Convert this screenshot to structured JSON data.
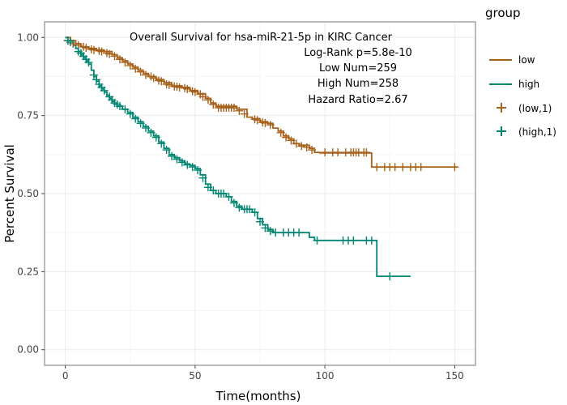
{
  "chart_data": {
    "type": "line",
    "xlabel": "Time(months)",
    "ylabel": "Percent Survival",
    "xlim": [
      -8,
      158
    ],
    "ylim": [
      -0.05,
      1.05
    ],
    "x_ticks": [
      0,
      50,
      100,
      150
    ],
    "y_ticks": [
      0.0,
      0.25,
      0.5,
      0.75,
      1.0
    ],
    "x_tick_labels": [
      "0",
      "50",
      "100",
      "150"
    ],
    "y_tick_labels": [
      "0.00",
      "0.25",
      "0.50",
      "0.75",
      "1.00"
    ],
    "grid": true,
    "annotations": [
      "Overall Survival for hsa-miR-21-5p in KIRC Cancer",
      "Log-Rank p=5.8e-10",
      "Low Num=259",
      "High Num=258",
      "Hazard Ratio=2.67"
    ],
    "legend": {
      "title": "group",
      "position": "right",
      "entries": [
        "low",
        "high",
        "(low,1)",
        "(high,1)"
      ]
    },
    "series": [
      {
        "name": "low",
        "color": "#a6611a",
        "steps": [
          [
            0,
            1.0
          ],
          [
            2,
            0.99
          ],
          [
            4,
            0.98
          ],
          [
            6,
            0.97
          ],
          [
            9,
            0.965
          ],
          [
            12,
            0.96
          ],
          [
            15,
            0.955
          ],
          [
            18,
            0.945
          ],
          [
            20,
            0.935
          ],
          [
            22,
            0.925
          ],
          [
            24,
            0.915
          ],
          [
            26,
            0.905
          ],
          [
            28,
            0.895
          ],
          [
            30,
            0.885
          ],
          [
            32,
            0.875
          ],
          [
            35,
            0.865
          ],
          [
            38,
            0.855
          ],
          [
            41,
            0.845
          ],
          [
            45,
            0.84
          ],
          [
            48,
            0.83
          ],
          [
            51,
            0.82
          ],
          [
            54,
            0.805
          ],
          [
            56,
            0.79
          ],
          [
            58,
            0.78
          ],
          [
            66,
            0.77
          ],
          [
            70,
            0.745
          ],
          [
            72,
            0.74
          ],
          [
            75,
            0.73
          ],
          [
            78,
            0.725
          ],
          [
            80,
            0.71
          ],
          [
            82,
            0.7
          ],
          [
            84,
            0.685
          ],
          [
            86,
            0.675
          ],
          [
            88,
            0.66
          ],
          [
            90,
            0.655
          ],
          [
            94,
            0.645
          ],
          [
            96,
            0.632
          ],
          [
            98,
            0.63
          ],
          [
            118,
            0.585
          ],
          [
            151,
            0.585
          ]
        ],
        "censors": [
          [
            1,
            0.99
          ],
          [
            3,
            0.98
          ],
          [
            5,
            0.975
          ],
          [
            7,
            0.97
          ],
          [
            8,
            0.967
          ],
          [
            10,
            0.962
          ],
          [
            11,
            0.96
          ],
          [
            13,
            0.957
          ],
          [
            14,
            0.955
          ],
          [
            16,
            0.95
          ],
          [
            17,
            0.947
          ],
          [
            19,
            0.94
          ],
          [
            21,
            0.93
          ],
          [
            23,
            0.92
          ],
          [
            25,
            0.91
          ],
          [
            27,
            0.9
          ],
          [
            29,
            0.89
          ],
          [
            31,
            0.88
          ],
          [
            33,
            0.875
          ],
          [
            34,
            0.87
          ],
          [
            36,
            0.862
          ],
          [
            37,
            0.86
          ],
          [
            39,
            0.85
          ],
          [
            40,
            0.848
          ],
          [
            42,
            0.843
          ],
          [
            43,
            0.842
          ],
          [
            44,
            0.84
          ],
          [
            46,
            0.838
          ],
          [
            47,
            0.835
          ],
          [
            49,
            0.828
          ],
          [
            50,
            0.825
          ],
          [
            52,
            0.818
          ],
          [
            53,
            0.81
          ],
          [
            55,
            0.8
          ],
          [
            57,
            0.785
          ],
          [
            59,
            0.775
          ],
          [
            60,
            0.775
          ],
          [
            61,
            0.775
          ],
          [
            62,
            0.775
          ],
          [
            63,
            0.775
          ],
          [
            64,
            0.775
          ],
          [
            65,
            0.775
          ],
          [
            67,
            0.765
          ],
          [
            69,
            0.755
          ],
          [
            73,
            0.738
          ],
          [
            74,
            0.735
          ],
          [
            76,
            0.728
          ],
          [
            77,
            0.726
          ],
          [
            79,
            0.72
          ],
          [
            83,
            0.695
          ],
          [
            85,
            0.68
          ],
          [
            87,
            0.67
          ],
          [
            89,
            0.66
          ],
          [
            91,
            0.652
          ],
          [
            93,
            0.648
          ],
          [
            95,
            0.64
          ],
          [
            100,
            0.632
          ],
          [
            103,
            0.632
          ],
          [
            105,
            0.632
          ],
          [
            108,
            0.632
          ],
          [
            110,
            0.632
          ],
          [
            111,
            0.632
          ],
          [
            112,
            0.632
          ],
          [
            113,
            0.632
          ],
          [
            115,
            0.632
          ],
          [
            116,
            0.632
          ],
          [
            120,
            0.585
          ],
          [
            123,
            0.585
          ],
          [
            125,
            0.585
          ],
          [
            127,
            0.585
          ],
          [
            130,
            0.585
          ],
          [
            133,
            0.585
          ],
          [
            135,
            0.585
          ],
          [
            137,
            0.585
          ],
          [
            150,
            0.585
          ]
        ]
      },
      {
        "name": "high",
        "color": "#018571",
        "steps": [
          [
            0,
            1.0
          ],
          [
            1,
            0.99
          ],
          [
            3,
            0.975
          ],
          [
            4,
            0.965
          ],
          [
            5,
            0.955
          ],
          [
            6,
            0.945
          ],
          [
            7,
            0.935
          ],
          [
            8,
            0.925
          ],
          [
            9,
            0.915
          ],
          [
            10,
            0.895
          ],
          [
            11,
            0.875
          ],
          [
            12,
            0.86
          ],
          [
            13,
            0.845
          ],
          [
            14,
            0.835
          ],
          [
            15,
            0.825
          ],
          [
            16,
            0.815
          ],
          [
            17,
            0.805
          ],
          [
            18,
            0.795
          ],
          [
            19,
            0.79
          ],
          [
            20,
            0.78
          ],
          [
            22,
            0.77
          ],
          [
            24,
            0.76
          ],
          [
            26,
            0.745
          ],
          [
            28,
            0.73
          ],
          [
            30,
            0.715
          ],
          [
            32,
            0.7
          ],
          [
            34,
            0.685
          ],
          [
            36,
            0.665
          ],
          [
            38,
            0.645
          ],
          [
            40,
            0.625
          ],
          [
            42,
            0.615
          ],
          [
            44,
            0.605
          ],
          [
            46,
            0.595
          ],
          [
            48,
            0.59
          ],
          [
            50,
            0.58
          ],
          [
            52,
            0.56
          ],
          [
            54,
            0.53
          ],
          [
            56,
            0.51
          ],
          [
            58,
            0.5
          ],
          [
            62,
            0.49
          ],
          [
            64,
            0.475
          ],
          [
            66,
            0.46
          ],
          [
            68,
            0.45
          ],
          [
            72,
            0.44
          ],
          [
            74,
            0.42
          ],
          [
            76,
            0.4
          ],
          [
            78,
            0.385
          ],
          [
            80,
            0.375
          ],
          [
            93,
            0.375
          ],
          [
            94,
            0.36
          ],
          [
            96,
            0.35
          ],
          [
            100,
            0.35
          ],
          [
            120,
            0.235
          ],
          [
            133,
            0.235
          ]
        ],
        "censors": [
          [
            1,
            0.99
          ],
          [
            2,
            0.985
          ],
          [
            5,
            0.955
          ],
          [
            6,
            0.95
          ],
          [
            7,
            0.94
          ],
          [
            8,
            0.93
          ],
          [
            9,
            0.92
          ],
          [
            11,
            0.88
          ],
          [
            12,
            0.865
          ],
          [
            13,
            0.85
          ],
          [
            14,
            0.84
          ],
          [
            15,
            0.83
          ],
          [
            17,
            0.81
          ],
          [
            18,
            0.8
          ],
          [
            19,
            0.79
          ],
          [
            20,
            0.785
          ],
          [
            21,
            0.78
          ],
          [
            23,
            0.77
          ],
          [
            25,
            0.755
          ],
          [
            27,
            0.74
          ],
          [
            29,
            0.725
          ],
          [
            31,
            0.71
          ],
          [
            33,
            0.695
          ],
          [
            35,
            0.68
          ],
          [
            37,
            0.66
          ],
          [
            39,
            0.64
          ],
          [
            41,
            0.62
          ],
          [
            43,
            0.61
          ],
          [
            45,
            0.6
          ],
          [
            47,
            0.592
          ],
          [
            49,
            0.585
          ],
          [
            51,
            0.575
          ],
          [
            53,
            0.55
          ],
          [
            55,
            0.52
          ],
          [
            57,
            0.51
          ],
          [
            59,
            0.5
          ],
          [
            60,
            0.5
          ],
          [
            61,
            0.5
          ],
          [
            63,
            0.49
          ],
          [
            65,
            0.47
          ],
          [
            67,
            0.455
          ],
          [
            69,
            0.45
          ],
          [
            70,
            0.45
          ],
          [
            71,
            0.45
          ],
          [
            73,
            0.44
          ],
          [
            75,
            0.41
          ],
          [
            77,
            0.39
          ],
          [
            79,
            0.38
          ],
          [
            81,
            0.375
          ],
          [
            84,
            0.375
          ],
          [
            86,
            0.375
          ],
          [
            88,
            0.375
          ],
          [
            90,
            0.375
          ],
          [
            97,
            0.35
          ],
          [
            107,
            0.35
          ],
          [
            109,
            0.35
          ],
          [
            111,
            0.35
          ],
          [
            116,
            0.35
          ],
          [
            118,
            0.35
          ],
          [
            125,
            0.235
          ]
        ]
      }
    ]
  }
}
